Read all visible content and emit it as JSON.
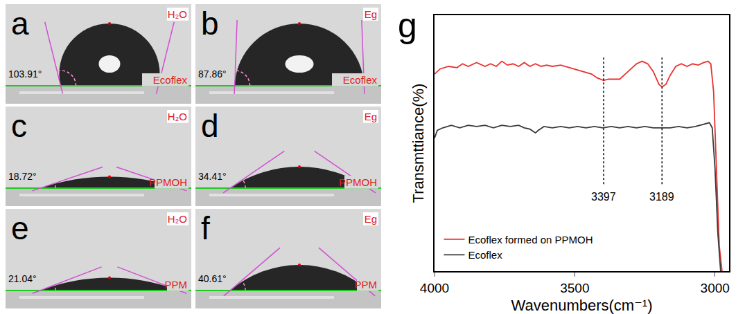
{
  "panels": [
    {
      "letter": "a",
      "liquid": "H₂O",
      "substrate": "Ecoflex",
      "contact_angle": 103.91,
      "contact_angle_label": "103.91°"
    },
    {
      "letter": "b",
      "liquid": "Eg",
      "substrate": "Ecoflex",
      "contact_angle": 87.86,
      "contact_angle_label": "87.86°"
    },
    {
      "letter": "c",
      "liquid": "H₂O",
      "substrate": "PPMOH",
      "contact_angle": 18.72,
      "contact_angle_label": "18.72°"
    },
    {
      "letter": "d",
      "liquid": "Eg",
      "substrate": "PPMOH",
      "contact_angle": 34.41,
      "contact_angle_label": "34.41°"
    },
    {
      "letter": "e",
      "liquid": "H₂O",
      "substrate": "PPM",
      "contact_angle": 21.04,
      "contact_angle_label": "21.04°"
    },
    {
      "letter": "f",
      "liquid": "Eg",
      "substrate": "PPM",
      "contact_angle": 40.61,
      "contact_angle_label": "40.61°"
    }
  ],
  "chart_data": {
    "type": "line",
    "letter": "g",
    "x_label": "Wavenumbers(cm⁻¹)",
    "y_label": "Transmttiance(%)",
    "xlim": [
      4000,
      2950
    ],
    "xticks": [
      4000,
      3500,
      3000
    ],
    "ylim": [
      0,
      100
    ],
    "tick_labels": "x",
    "grid": false,
    "legend": "lower left",
    "annotations": [
      {
        "x": 3397,
        "text": "3397"
      },
      {
        "x": 3189,
        "text": "3189"
      }
    ],
    "series": [
      {
        "name": "Ecoflex formed on PPMOH",
        "color": "#e8312f",
        "x": [
          4000,
          3980,
          3950,
          3920,
          3900,
          3880,
          3850,
          3820,
          3800,
          3780,
          3760,
          3740,
          3720,
          3700,
          3680,
          3660,
          3640,
          3620,
          3600,
          3580,
          3550,
          3520,
          3500,
          3470,
          3440,
          3420,
          3397,
          3380,
          3360,
          3340,
          3320,
          3300,
          3280,
          3260,
          3240,
          3220,
          3200,
          3189,
          3175,
          3160,
          3140,
          3120,
          3100,
          3080,
          3060,
          3040,
          3025,
          3015,
          3005,
          2995,
          2985,
          2975
        ],
        "values": [
          77,
          79,
          80,
          79.5,
          81,
          80,
          81.5,
          80,
          81,
          80,
          82,
          80.5,
          81,
          80,
          81.5,
          80,
          81,
          80,
          80.5,
          80,
          80.5,
          79.5,
          79,
          78,
          77,
          75.5,
          74.5,
          75,
          75,
          75,
          77,
          79,
          81,
          82,
          81,
          78,
          73,
          72,
          73,
          76.5,
          80,
          81,
          80,
          81,
          80.5,
          81.5,
          82,
          81,
          70,
          40,
          10,
          0
        ]
      },
      {
        "name": "Ecoflex",
        "color": "#3a3a3a",
        "x": [
          4000,
          3990,
          3970,
          3940,
          3910,
          3880,
          3850,
          3820,
          3790,
          3760,
          3730,
          3700,
          3680,
          3660,
          3640,
          3630,
          3610,
          3580,
          3550,
          3520,
          3490,
          3460,
          3430,
          3400,
          3370,
          3340,
          3310,
          3280,
          3250,
          3220,
          3190,
          3160,
          3130,
          3100,
          3070,
          3040,
          3020,
          3010,
          3000,
          2990,
          2980
        ],
        "values": [
          52,
          55,
          56,
          57,
          56,
          57,
          56.5,
          57,
          56,
          57,
          56.5,
          57,
          56,
          55.5,
          54,
          55,
          56.5,
          56,
          56.5,
          56,
          56.5,
          56,
          56.5,
          56,
          56.5,
          56,
          56.5,
          56,
          56.5,
          56,
          56,
          56,
          56.5,
          56,
          56.5,
          57.5,
          58,
          56,
          40,
          15,
          0
        ]
      }
    ]
  }
}
